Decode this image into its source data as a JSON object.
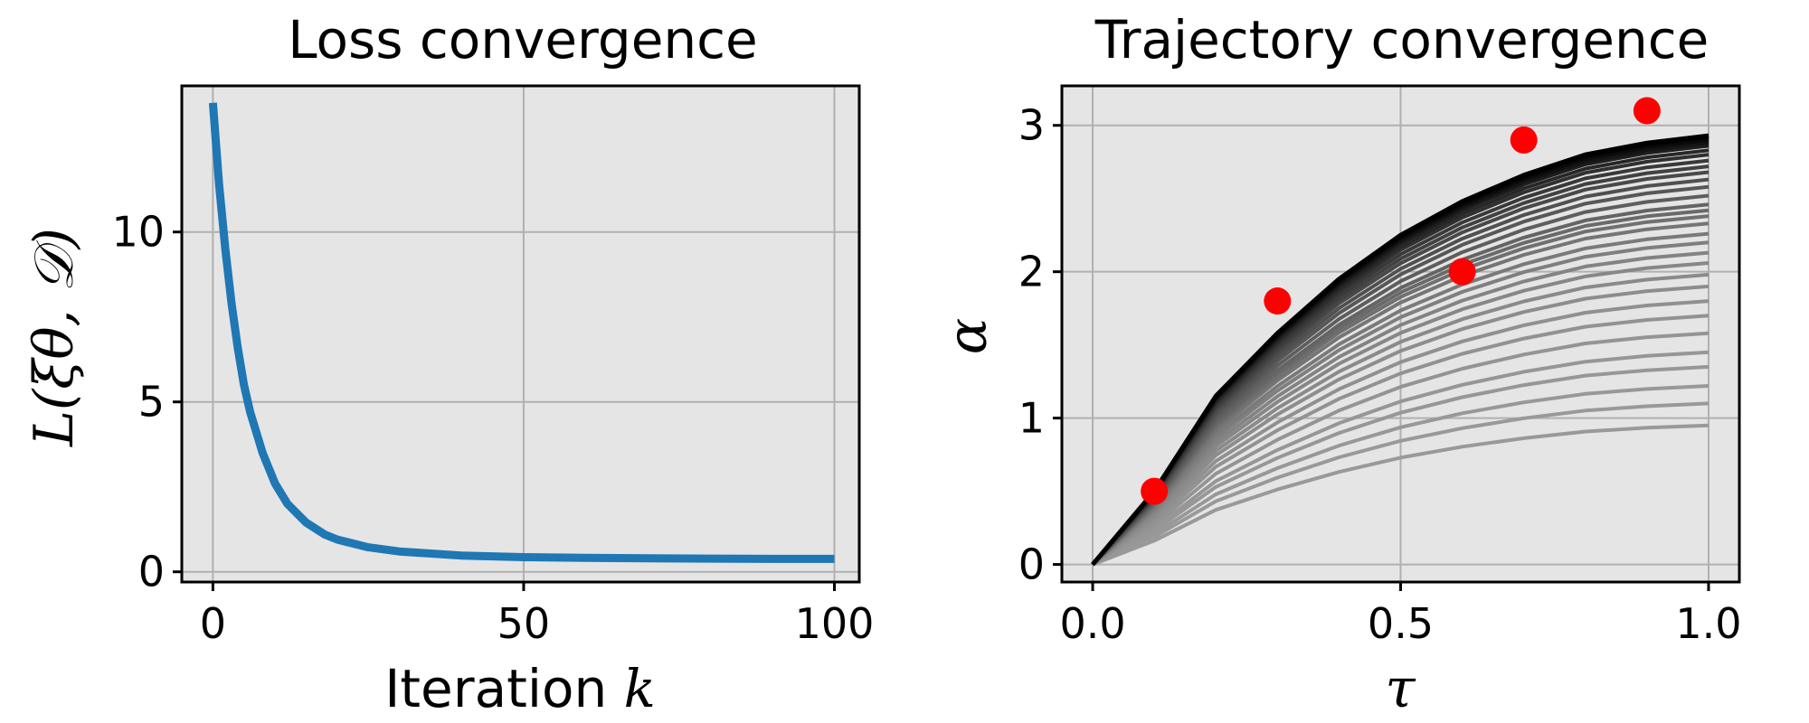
{
  "charts": {
    "loss": {
      "title": "Loss convergence",
      "xlabel": "Iteration ",
      "xlabel_var": "k",
      "ylabel": "L(ξθ, 𝒟)",
      "xticks": [
        "0",
        "50",
        "100"
      ],
      "yticks": [
        "0",
        "5",
        "10"
      ]
    },
    "traj": {
      "title": "Trajectory convergence",
      "xlabel": "τ",
      "ylabel": "α",
      "xticks": [
        "0.0",
        "0.5",
        "1.0"
      ],
      "yticks": [
        "0",
        "1",
        "2",
        "3"
      ]
    }
  },
  "chart_data": [
    {
      "type": "line",
      "key": "loss",
      "title": "Loss convergence",
      "xlabel": "Iteration k",
      "ylabel": "L(ξθ, 𝒟)",
      "xlim": [
        -5,
        104
      ],
      "ylim": [
        -0.3,
        14.3
      ],
      "grid": true,
      "background": "#e5e5e5",
      "line_color": "#1f77b4",
      "series": [
        {
          "x": [
            0,
            1,
            2,
            3,
            4,
            5,
            6,
            8,
            10,
            12,
            15,
            18,
            20,
            25,
            30,
            40,
            50,
            60,
            70,
            80,
            90,
            100
          ],
          "values": [
            13.8,
            11.4,
            9.5,
            7.9,
            6.6,
            5.5,
            4.7,
            3.5,
            2.6,
            2.0,
            1.45,
            1.1,
            0.95,
            0.72,
            0.6,
            0.48,
            0.43,
            0.41,
            0.4,
            0.39,
            0.38,
            0.38
          ]
        }
      ]
    },
    {
      "type": "line",
      "key": "traj",
      "title": "Trajectory convergence",
      "xlabel": "τ",
      "ylabel": "α",
      "xlim": [
        -0.05,
        1.05
      ],
      "ylim": [
        -0.12,
        3.27
      ],
      "grid": true,
      "background": "#e5e5e5",
      "x": [
        0.0,
        0.1,
        0.2,
        0.3,
        0.4,
        0.5,
        0.6,
        0.7,
        0.8,
        0.9,
        1.0
      ],
      "final_trajectory": {
        "color": "#000000",
        "values": [
          0.0,
          0.5,
          1.15,
          1.58,
          1.95,
          2.25,
          2.48,
          2.66,
          2.8,
          2.88,
          2.93
        ]
      },
      "iterate_trajectories": {
        "color_start": "#999999",
        "color_end": "#000000",
        "end_values": [
          0.95,
          1.1,
          1.22,
          1.35,
          1.45,
          1.58,
          1.7,
          1.8,
          1.9,
          1.98,
          2.06,
          2.13,
          2.2,
          2.26,
          2.33,
          2.38,
          2.42,
          2.46,
          2.52,
          2.58,
          2.63,
          2.68,
          2.72,
          2.76,
          2.8,
          2.83,
          2.86,
          2.88,
          2.9,
          2.92
        ]
      },
      "scatter": {
        "color": "#ff0000",
        "x": [
          0.1,
          0.3,
          0.6,
          0.7,
          0.9
        ],
        "y": [
          0.5,
          1.8,
          2.0,
          2.9,
          3.1
        ]
      }
    }
  ]
}
